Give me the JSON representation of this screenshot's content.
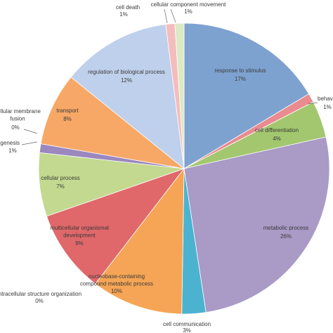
{
  "chart_data": {
    "type": "pie",
    "title": "",
    "slices": [
      {
        "name": "response to stimulus",
        "label": "17%",
        "value": 17,
        "color": "#7EA2D0"
      },
      {
        "name": "behav",
        "label": "1%",
        "value": 1,
        "color": "#E98B8F"
      },
      {
        "name": "cell differentiation",
        "label": "4%",
        "value": 4,
        "color": "#A3C76E"
      },
      {
        "name": "metabolic process",
        "label": "26%",
        "value": 26,
        "color": "#A99AC6"
      },
      {
        "name": "cell communication",
        "label": "3%",
        "value": 3,
        "color": "#4BB3CF"
      },
      {
        "name": "nucleobase-containing compound metabolic process",
        "label": "10%",
        "value": 10,
        "color": "#F5A555"
      },
      {
        "name": "intracellular structure organization",
        "label": "0%",
        "value": 0,
        "color": "#9DB5DC"
      },
      {
        "name": "multicellular organismal development",
        "label": "9%",
        "value": 9,
        "color": "#E0686A"
      },
      {
        "name": "cellular process",
        "label": "7%",
        "value": 7,
        "color": "#C3D98F"
      },
      {
        "name": "pathogenesis",
        "label": "1%",
        "value": 1,
        "color": "#9A88BE"
      },
      {
        "name": "cellular membrane fusion",
        "label": "0%",
        "value": 0,
        "color": "#8FCFE0"
      },
      {
        "name": "transport",
        "label": "8%",
        "value": 8,
        "color": "#F7A866"
      },
      {
        "name": "regulation of biological process",
        "label": "12%",
        "value": 12,
        "color": "#BFD0EC"
      },
      {
        "name": "cell death",
        "label": "1%",
        "value": 1,
        "color": "#F4BDBC"
      },
      {
        "name": "cellular component movement",
        "label": "1%",
        "value": 1,
        "color": "#DCEAC4"
      }
    ],
    "legend": "none"
  }
}
